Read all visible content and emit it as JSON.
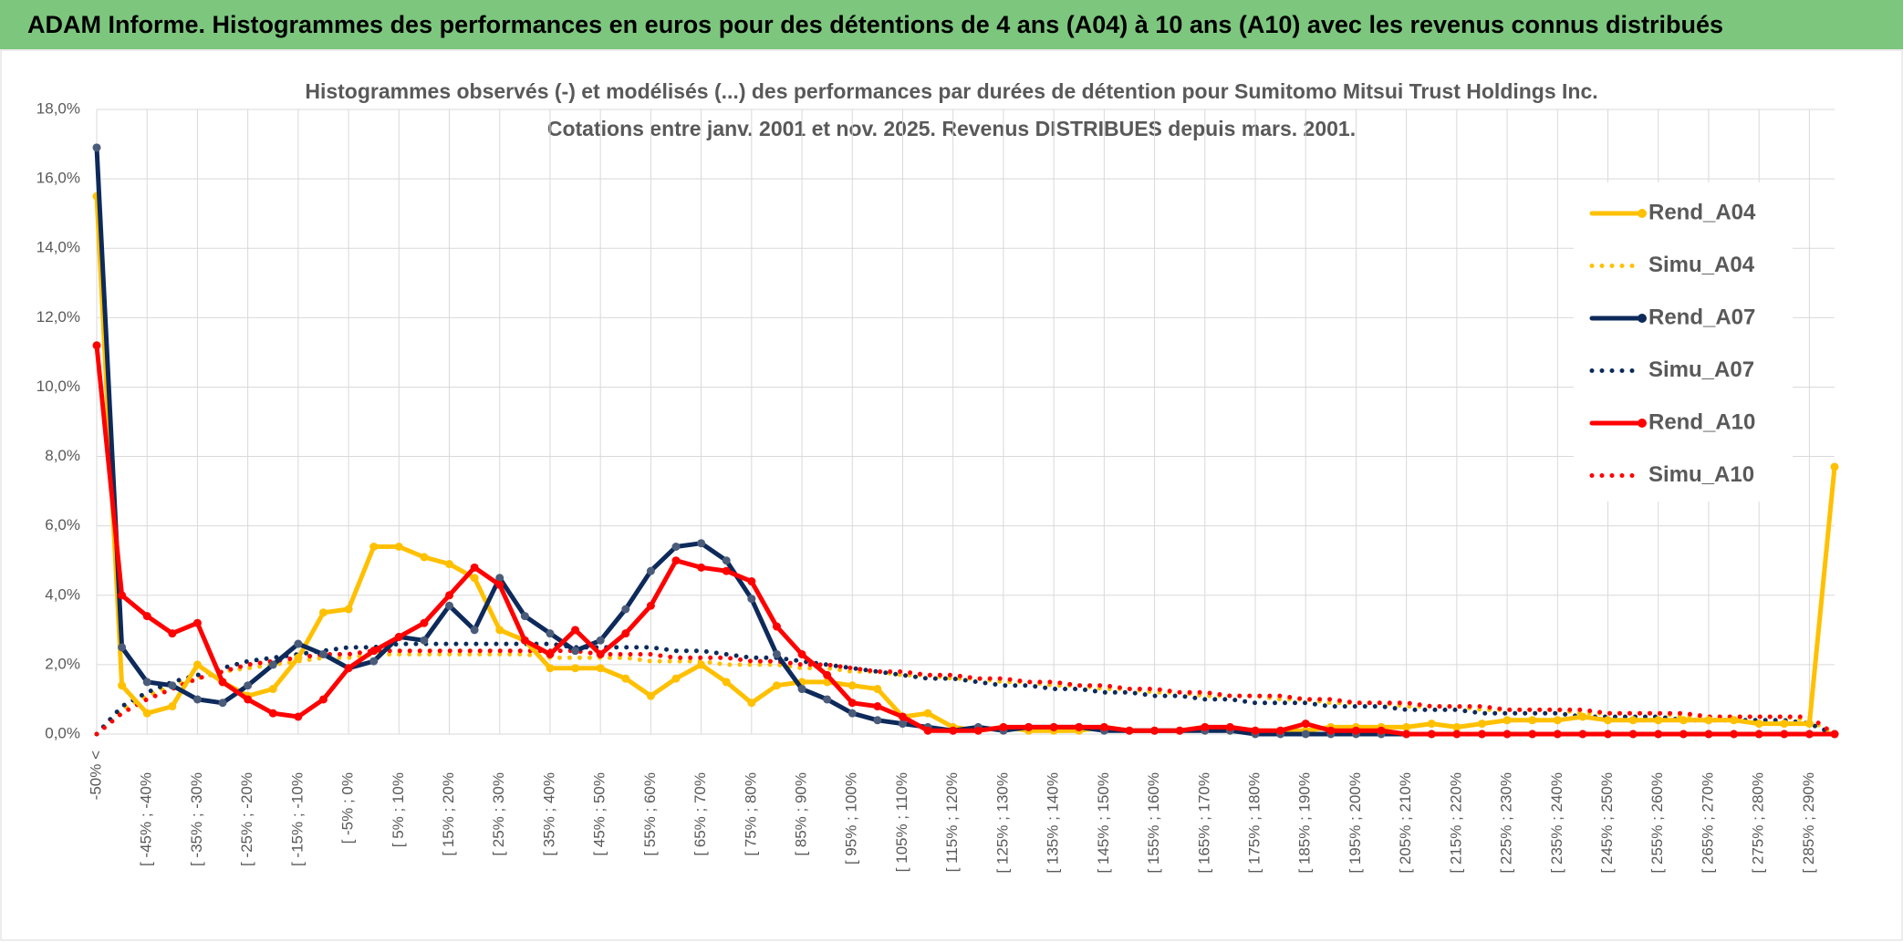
{
  "chart_data": {
    "type": "line",
    "header": "ADAM Informe. Histogrammes des performances en euros pour des détentions de 4 ans (A04) à 10 ans (A10) avec les revenus connus distribués",
    "title": "Histogrammes observés (-) et modélisés (...) des performances par durées de détention pour Sumitomo Mitsui Trust Holdings Inc.",
    "subtitle": "Cotations entre janv. 2001 et nov. 2025. Revenus DISTRIBUES depuis mars. 2001.",
    "categories": [
      "-50% <",
      null,
      "[ -45% ; -40%",
      null,
      "[ -35% ; -30%",
      null,
      "[ -25% ; -20%",
      null,
      "[ -15% ; -10%",
      null,
      "[ -5% ; 0%",
      null,
      "[ 5% ; 10%",
      null,
      "[ 15% ; 20%",
      null,
      "[ 25% ; 30%",
      null,
      "[ 35% ; 40%",
      null,
      "[ 45% ; 50%",
      null,
      "[ 55% ; 60%",
      null,
      "[ 65% ; 70%",
      null,
      "[ 75% ; 80%",
      null,
      "[ 85% ; 90%",
      null,
      "[ 95% ; 100%",
      null,
      "[ 105% ; 110%",
      null,
      "[ 115% ; 120%",
      null,
      "[ 125% ; 130%",
      null,
      "[ 135% ; 140%",
      null,
      "[ 145% ; 150%",
      null,
      "[ 155% ; 160%",
      null,
      "[ 165% ; 170%",
      null,
      "[ 175% ; 180%",
      null,
      "[ 185% ; 190%",
      null,
      "[ 195% ; 200%",
      null,
      "[ 205% ; 210%",
      null,
      "[ 215% ; 220%",
      null,
      "[ 225% ; 230%",
      null,
      "[ 235% ; 240%",
      null,
      "[ 245% ; 250%",
      null,
      "[ 255% ; 260%",
      null,
      "[ 265% ; 270%",
      null,
      "[ 275% ; 280%",
      null,
      "[ 285% ; 290%",
      null
    ],
    "ylim": [
      0,
      18
    ],
    "yticks": [
      {
        "value": 0,
        "label": "0,0%"
      },
      {
        "value": 2,
        "label": "2,0%"
      },
      {
        "value": 4,
        "label": "4,0%"
      },
      {
        "value": 6,
        "label": "6,0%"
      },
      {
        "value": 8,
        "label": "8,0%"
      },
      {
        "value": 10,
        "label": "10,0%"
      },
      {
        "value": 12,
        "label": "12,0%"
      },
      {
        "value": 14,
        "label": "14,0%"
      },
      {
        "value": 16,
        "label": "16,0%"
      },
      {
        "value": 18,
        "label": "18,0%"
      }
    ],
    "grid": true,
    "series": [
      {
        "name": "Rend_A04",
        "color": "#FFC000",
        "style": "solid",
        "values": [
          15.5,
          1.4,
          0.6,
          0.8,
          2.0,
          1.5,
          1.1,
          1.3,
          2.2,
          3.5,
          3.6,
          5.4,
          5.4,
          5.1,
          4.9,
          4.5,
          3.0,
          2.7,
          1.9,
          1.9,
          1.9,
          1.6,
          1.1,
          1.6,
          2.0,
          1.5,
          0.9,
          1.4,
          1.5,
          1.5,
          1.4,
          1.3,
          0.5,
          0.6,
          0.2,
          0.1,
          0.2,
          0.1,
          0.1,
          0.1,
          0.2,
          0.1,
          0.1,
          0.1,
          0.2,
          0.1,
          0.1,
          0.1,
          0.1,
          0.2,
          0.2,
          0.2,
          0.2,
          0.3,
          0.2,
          0.3,
          0.4,
          0.4,
          0.4,
          0.5,
          0.4,
          0.4,
          0.4,
          0.4,
          0.4,
          0.4,
          0.3,
          0.3,
          0.3,
          7.7
        ]
      },
      {
        "name": "Simu_A04",
        "color": "#FFC000",
        "style": "dotted",
        "values": [
          0,
          0.7,
          1.1,
          1.4,
          1.6,
          1.8,
          1.9,
          2.0,
          2.1,
          2.2,
          2.2,
          2.3,
          2.3,
          2.3,
          2.3,
          2.3,
          2.3,
          2.3,
          2.2,
          2.2,
          2.2,
          2.2,
          2.1,
          2.1,
          2.1,
          2.0,
          2.0,
          2.0,
          1.9,
          1.9,
          1.8,
          1.8,
          1.7,
          1.7,
          1.6,
          1.6,
          1.5,
          1.5,
          1.4,
          1.4,
          1.3,
          1.3,
          1.2,
          1.2,
          1.1,
          1.1,
          1.1,
          1.0,
          1.0,
          0.9,
          0.9,
          0.9,
          0.8,
          0.8,
          0.8,
          0.7,
          0.7,
          0.7,
          0.7,
          0.6,
          0.6,
          0.6,
          0.6,
          0.5,
          0.5,
          0.5,
          0.5,
          0.5,
          0.4,
          0.0
        ]
      },
      {
        "name": "Rend_A07",
        "color": "#0D2A5B",
        "style": "solid",
        "values": [
          16.9,
          2.5,
          1.5,
          1.4,
          1.0,
          0.9,
          1.4,
          2.0,
          2.6,
          2.3,
          1.9,
          2.1,
          2.8,
          2.7,
          3.7,
          3.0,
          4.5,
          3.4,
          2.9,
          2.4,
          2.7,
          3.6,
          4.7,
          5.4,
          5.5,
          5.0,
          3.9,
          2.3,
          1.3,
          1.0,
          0.6,
          0.4,
          0.3,
          0.2,
          0.1,
          0.2,
          0.1,
          0.2,
          0.2,
          0.2,
          0.1,
          0.1,
          0.1,
          0.1,
          0.1,
          0.1,
          0,
          0,
          0,
          0,
          0,
          0,
          0,
          0,
          0,
          0,
          0,
          0,
          0,
          0,
          0,
          0,
          0,
          0,
          0,
          0,
          0,
          0,
          0,
          0
        ]
      },
      {
        "name": "Simu_A07",
        "color": "#0D2A5B",
        "style": "dotted",
        "values": [
          0,
          0.8,
          1.2,
          1.5,
          1.7,
          1.9,
          2.1,
          2.2,
          2.3,
          2.4,
          2.5,
          2.5,
          2.6,
          2.6,
          2.6,
          2.6,
          2.6,
          2.6,
          2.6,
          2.5,
          2.5,
          2.5,
          2.5,
          2.4,
          2.4,
          2.3,
          2.2,
          2.2,
          2.1,
          2.0,
          1.9,
          1.8,
          1.7,
          1.6,
          1.6,
          1.5,
          1.4,
          1.4,
          1.3,
          1.3,
          1.2,
          1.2,
          1.1,
          1.1,
          1.0,
          1.0,
          0.9,
          0.9,
          0.9,
          0.8,
          0.8,
          0.8,
          0.7,
          0.7,
          0.7,
          0.6,
          0.6,
          0.6,
          0.6,
          0.5,
          0.5,
          0.5,
          0.5,
          0.4,
          0.4,
          0.4,
          0.4,
          0.4,
          0.3,
          0.0
        ]
      },
      {
        "name": "Rend_A10",
        "color": "#FF0000",
        "style": "solid",
        "values": [
          11.2,
          4.0,
          3.4,
          2.9,
          3.2,
          1.5,
          1.0,
          0.6,
          0.5,
          1.0,
          1.9,
          2.4,
          2.8,
          3.2,
          4.0,
          4.8,
          4.3,
          2.7,
          2.3,
          3.0,
          2.3,
          2.9,
          3.7,
          5.0,
          4.8,
          4.7,
          4.4,
          3.1,
          2.3,
          1.7,
          0.9,
          0.8,
          0.5,
          0.1,
          0.1,
          0.1,
          0.2,
          0.2,
          0.2,
          0.2,
          0.2,
          0.1,
          0.1,
          0.1,
          0.2,
          0.2,
          0.1,
          0.1,
          0.3,
          0.1,
          0.1,
          0.1,
          0,
          0,
          0,
          0,
          0,
          0,
          0,
          0,
          0,
          0,
          0,
          0,
          0,
          0,
          0,
          0,
          0,
          0
        ]
      },
      {
        "name": "Simu_A10",
        "color": "#FF0000",
        "style": "dotted",
        "values": [
          0,
          0.6,
          1.0,
          1.3,
          1.6,
          1.8,
          2.0,
          2.1,
          2.2,
          2.3,
          2.3,
          2.4,
          2.4,
          2.4,
          2.4,
          2.4,
          2.4,
          2.4,
          2.4,
          2.4,
          2.3,
          2.3,
          2.3,
          2.2,
          2.2,
          2.2,
          2.1,
          2.1,
          2.0,
          2.0,
          1.9,
          1.8,
          1.8,
          1.7,
          1.7,
          1.6,
          1.6,
          1.5,
          1.5,
          1.4,
          1.4,
          1.3,
          1.3,
          1.2,
          1.2,
          1.1,
          1.1,
          1.1,
          1.0,
          1.0,
          0.9,
          0.9,
          0.9,
          0.8,
          0.8,
          0.8,
          0.7,
          0.7,
          0.7,
          0.7,
          0.6,
          0.6,
          0.6,
          0.6,
          0.5,
          0.5,
          0.5,
          0.5,
          0.5,
          0.0
        ]
      }
    ]
  }
}
